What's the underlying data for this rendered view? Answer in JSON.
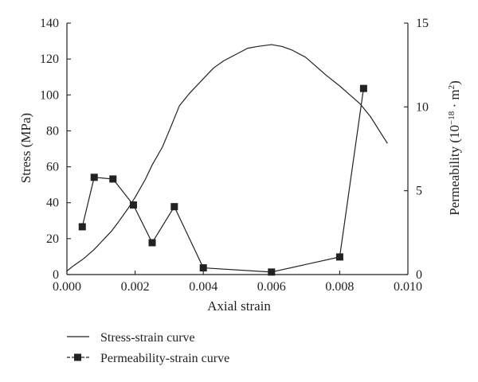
{
  "chart_data": {
    "type": "line",
    "xlabel": "Axial strain",
    "ylabel": "Stress (MPa)",
    "ylabel_right_prefix": "Permeability (10",
    "ylabel_right_exp": "−18",
    "ylabel_right_mid": " · m",
    "ylabel_right_exp2": "2",
    "ylabel_right_suffix": ")",
    "xlim": [
      0,
      0.01
    ],
    "ylim_left": [
      0,
      140
    ],
    "ylim_right": [
      0,
      15
    ],
    "xticks": [
      0,
      0.002,
      0.004,
      0.006,
      0.008,
      0.01
    ],
    "xtick_labels": [
      "0.000",
      "0.002",
      "0.004",
      "0.006",
      "0.008",
      "0.010"
    ],
    "yticks_left": [
      0,
      20,
      40,
      60,
      80,
      100,
      120,
      140
    ],
    "ytick_labels_left": [
      "0",
      "20",
      "40",
      "60",
      "80",
      "100",
      "120",
      "140"
    ],
    "yticks_right": [
      0,
      5,
      10,
      15
    ],
    "ytick_labels_right": [
      "0",
      "5",
      "10",
      "15"
    ],
    "grid": false,
    "legend_position": "below",
    "color": "#222222",
    "series": [
      {
        "name": "Stress-strain curve",
        "axis": "left",
        "style": "line",
        "x": [
          0.0,
          0.0002,
          0.0005,
          0.0008,
          0.001,
          0.0013,
          0.0015,
          0.0018,
          0.002,
          0.0023,
          0.0025,
          0.0028,
          0.003,
          0.0033,
          0.0036,
          0.004,
          0.0043,
          0.0046,
          0.005,
          0.0053,
          0.0056,
          0.0058,
          0.006,
          0.0063,
          0.0066,
          0.007,
          0.0073,
          0.0076,
          0.008,
          0.0083,
          0.0086,
          0.0089,
          0.0091,
          0.0093,
          0.0094
        ],
        "y": [
          2,
          5,
          9,
          14,
          18,
          24,
          29,
          37,
          43,
          53,
          61,
          71,
          80,
          94,
          101,
          109,
          115,
          119,
          123,
          126,
          127,
          127.5,
          128,
          127,
          125,
          121,
          116,
          111,
          105,
          100,
          95,
          88,
          82,
          76,
          73
        ]
      },
      {
        "name": "Permeability-strain curve",
        "axis": "right",
        "style": "line-square",
        "x": [
          0.00045,
          0.0008,
          0.00135,
          0.00195,
          0.0025,
          0.00315,
          0.004,
          0.006,
          0.008,
          0.0087
        ],
        "y": [
          2.85,
          5.8,
          5.7,
          4.15,
          1.9,
          4.05,
          0.4,
          0.15,
          1.05,
          11.1
        ]
      }
    ]
  }
}
